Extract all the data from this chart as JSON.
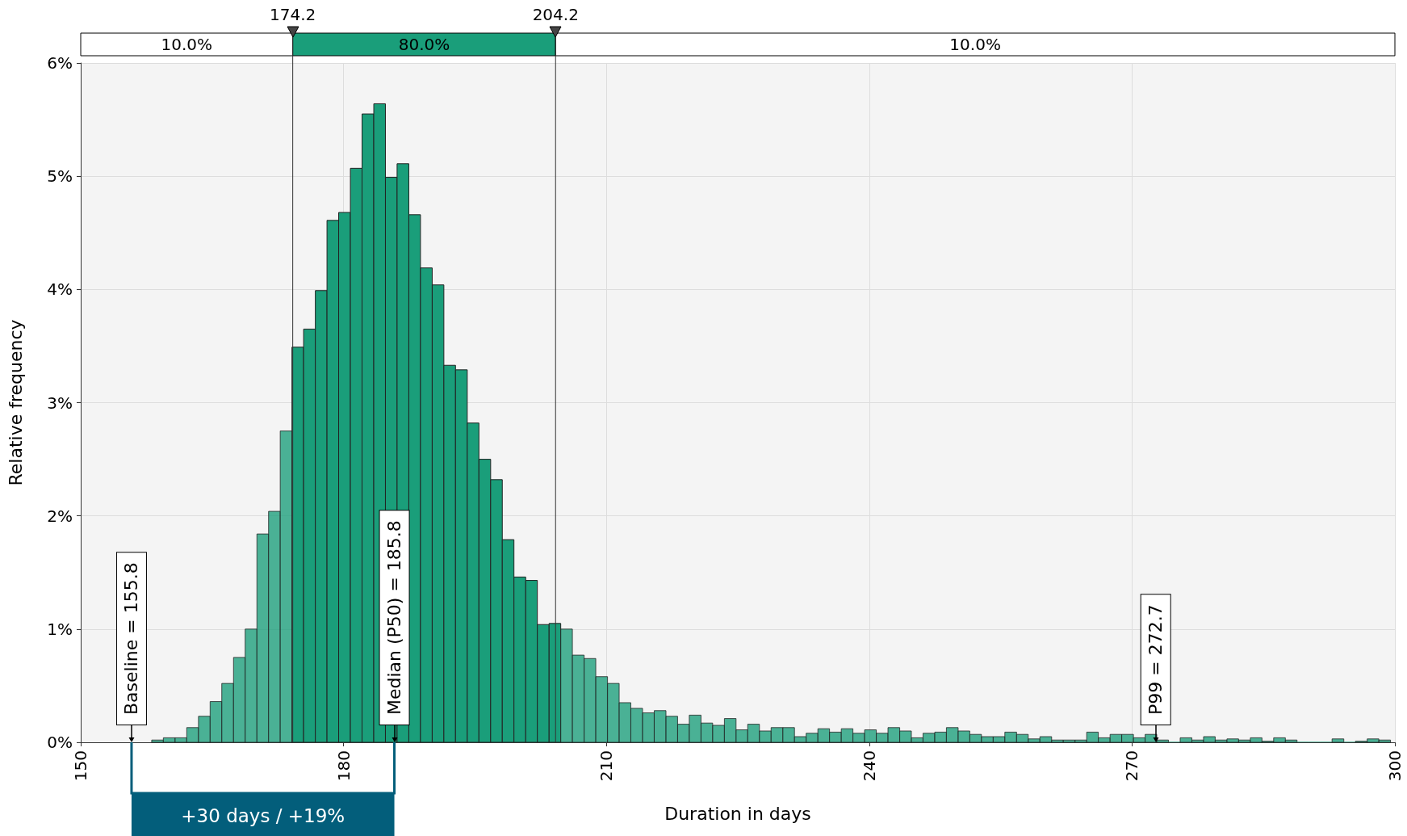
{
  "chart_data": {
    "type": "histogram",
    "xlabel": "Duration in days",
    "ylabel": "Relative frequency",
    "color": "#1a9e7a",
    "bins": [
      158.1,
      159.43,
      160.77,
      162.1,
      163.44,
      164.77,
      166.1,
      167.44,
      168.77,
      170.11,
      171.44,
      172.77,
      174.11,
      175.44,
      176.78,
      178.11,
      179.44,
      180.78,
      182.11,
      183.45,
      184.78,
      186.11,
      187.45,
      188.78,
      190.12,
      191.45,
      192.78,
      194.12,
      195.45,
      196.79,
      198.12,
      199.45,
      200.79,
      202.12,
      203.46,
      204.79,
      206.12,
      207.46,
      208.79,
      210.13,
      211.46,
      212.79,
      214.13,
      215.46,
      216.8,
      218.13,
      219.46,
      220.8,
      222.13,
      223.47,
      224.8,
      226.13,
      227.47,
      228.8,
      230.14,
      231.47,
      232.8,
      234.14,
      235.47,
      236.81,
      238.14,
      239.47,
      240.81,
      242.14,
      243.48,
      244.81,
      246.14,
      247.48,
      248.81,
      250.15,
      251.48,
      252.81,
      254.15,
      255.48,
      256.82,
      258.15,
      259.48,
      260.82,
      262.15,
      263.49,
      264.82,
      266.15,
      267.49,
      268.82,
      270.16,
      271.49,
      272.82,
      274.16,
      275.49,
      276.83,
      278.16,
      279.49,
      280.83,
      282.16,
      283.5,
      284.83,
      286.16,
      287.5,
      288.83,
      290.17,
      291.5,
      292.83,
      294.17,
      295.5,
      296.84,
      298.17,
      299.5
    ],
    "values": [
      0.02,
      0.04,
      0.04,
      0.13,
      0.23,
      0.36,
      0.52,
      0.75,
      1.0,
      1.84,
      2.04,
      2.75,
      3.49,
      3.65,
      3.99,
      4.61,
      4.68,
      5.07,
      5.55,
      5.64,
      4.99,
      5.11,
      4.66,
      4.19,
      4.04,
      3.33,
      3.29,
      2.82,
      2.5,
      2.32,
      1.79,
      1.46,
      1.43,
      1.04,
      1.05,
      1.0,
      0.77,
      0.74,
      0.58,
      0.52,
      0.35,
      0.3,
      0.26,
      0.28,
      0.23,
      0.16,
      0.24,
      0.17,
      0.15,
      0.21,
      0.11,
      0.16,
      0.1,
      0.13,
      0.13,
      0.05,
      0.08,
      0.12,
      0.09,
      0.12,
      0.08,
      0.11,
      0.08,
      0.13,
      0.1,
      0.04,
      0.08,
      0.09,
      0.13,
      0.1,
      0.07,
      0.05,
      0.05,
      0.09,
      0.07,
      0.03,
      0.05,
      0.02,
      0.02,
      0.02,
      0.09,
      0.04,
      0.07,
      0.07,
      0.04,
      0.07,
      0.02,
      0,
      0.04,
      0.02,
      0.05,
      0.02,
      0.03,
      0.02,
      0.04,
      0.01,
      0.04,
      0.02,
      0,
      0,
      0,
      0.03,
      0,
      0.01,
      0.03,
      0.02
    ],
    "xlim": [
      150,
      300
    ],
    "xticks": [
      150,
      180,
      210,
      240,
      270,
      300
    ],
    "ylim": [
      0,
      6
    ],
    "yticks": [
      {
        "value": 0,
        "label": "0%"
      },
      {
        "value": 1,
        "label": "1%"
      },
      {
        "value": 2,
        "label": "2%"
      },
      {
        "value": 3,
        "label": "3%"
      },
      {
        "value": 4,
        "label": "4%"
      },
      {
        "value": 5,
        "label": "5%"
      },
      {
        "value": 6,
        "label": "6%"
      }
    ],
    "grid": true,
    "ref_lines": [
      {
        "axis": "x",
        "value": 174.2,
        "label": "174.2",
        "color": "#333333",
        "line_style": "solid"
      },
      {
        "axis": "x",
        "value": 204.2,
        "label": "204.2",
        "color": "#333333",
        "line_style": "solid"
      },
      {
        "axis": "x",
        "value": 155.8,
        "label": "Baseline = 155.8",
        "color": "#000000"
      },
      {
        "axis": "x",
        "value": 185.8,
        "label": "Median (P50) = 185.8",
        "color": "#000000"
      },
      {
        "axis": "x",
        "value": 272.7,
        "label": "P99 = 272.7",
        "color": "#000000"
      }
    ],
    "annotations": [
      "10.0%",
      "80.0%",
      "10.0%",
      "+30 days / +19%"
    ]
  }
}
